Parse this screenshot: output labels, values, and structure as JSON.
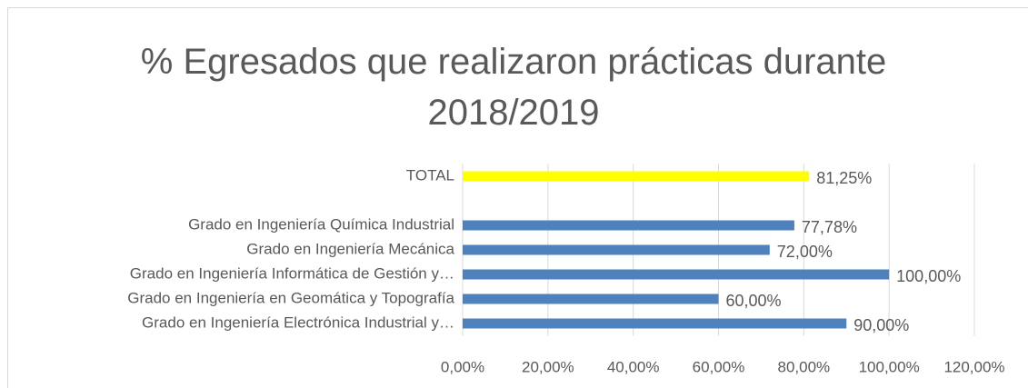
{
  "chart_data": {
    "type": "barh",
    "title": "% Egresados que realizaron prácticas durante 2018/2019",
    "categories": [
      "TOTAL",
      null,
      "Grado en Ingeniería Química Industrial",
      "Grado en Ingeniería Mecánica",
      "Grado en Ingeniería Informática de Gestión y…",
      "Grado en Ingeniería en Geomática y Topografía",
      "Grado en Ingeniería Electrónica Industrial y…"
    ],
    "values": [
      81.25,
      null,
      77.78,
      72,
      100,
      60,
      90
    ],
    "value_labels": [
      "81,25%",
      null,
      "77,78%",
      "72,00%",
      "100,00%",
      "60,00%",
      "90,00%"
    ],
    "colors": [
      "#ffff00",
      null,
      "#4f81bd",
      "#4f81bd",
      "#4f81bd",
      "#4f81bd",
      "#4f81bd"
    ],
    "xlim": [
      0,
      120
    ],
    "xticks": [
      {
        "value": 0,
        "label": "0,00%"
      },
      {
        "value": 20,
        "label": "20,00%"
      },
      {
        "value": 40,
        "label": "40,00%"
      },
      {
        "value": 60,
        "label": "60,00%"
      },
      {
        "value": 80,
        "label": "80,00%"
      },
      {
        "value": 100,
        "label": "100,00%"
      },
      {
        "value": 120,
        "label": "120,00%"
      }
    ],
    "grid": true
  }
}
